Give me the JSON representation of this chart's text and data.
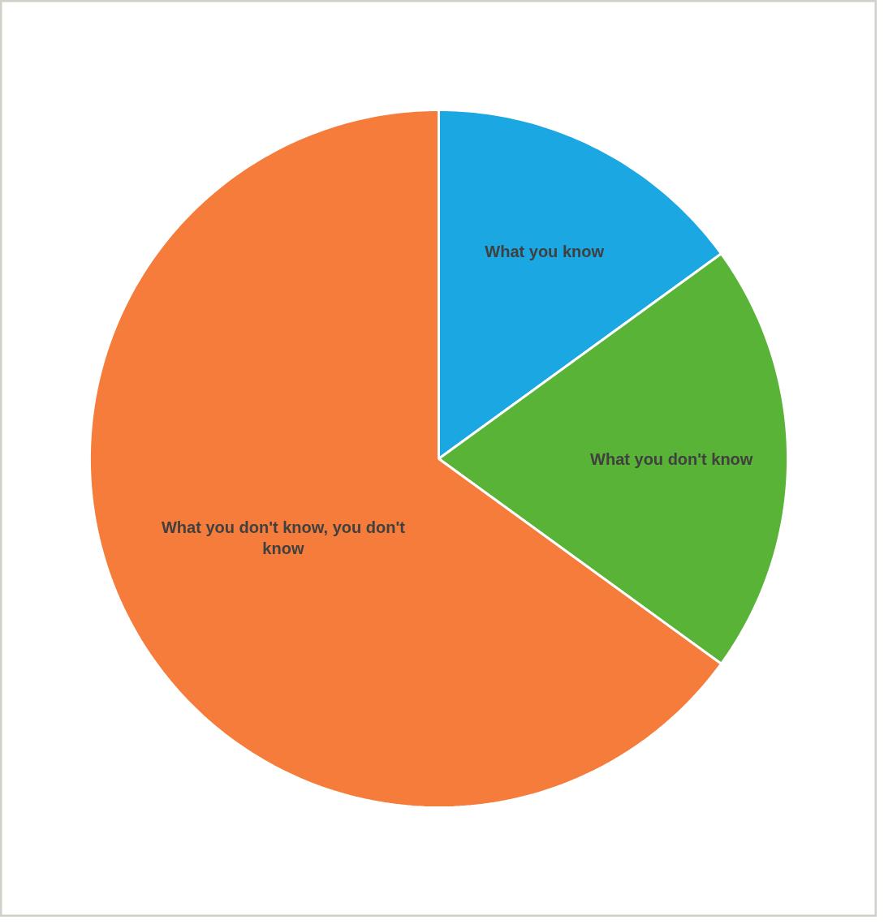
{
  "chart_data": {
    "type": "pie",
    "categories": [
      "What you know",
      "What you don't know",
      "What you don't know, you don't know"
    ],
    "values": [
      15,
      20,
      65
    ],
    "colors": [
      "#1aa7e2",
      "#58b336",
      "#f57c3a"
    ]
  }
}
